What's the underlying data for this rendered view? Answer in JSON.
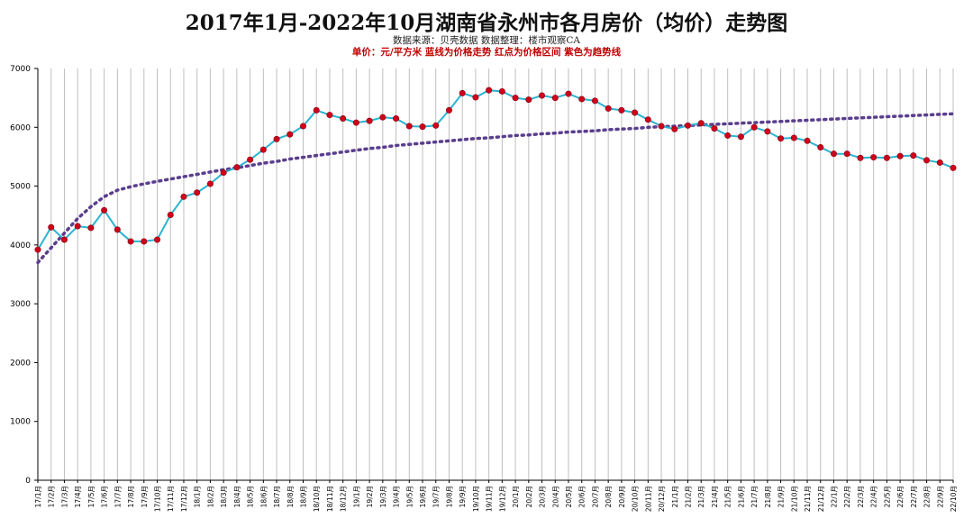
{
  "title": "2017年1月-2022年10月湖南省永州市各月房价（均价）走势图",
  "subtitle": "数据来源：贝壳数据  数据整理：楼市观察CA",
  "note": "单价：元/平方米  蓝线为价格走势    红点为价格区间      紫色为趋势线",
  "colors": {
    "line": "#2bb4d0",
    "point": "#d0021b",
    "trend": "#5a3e8e",
    "grid": "#bfbfbf"
  },
  "chart_data": {
    "type": "line",
    "title": "2017年1月-2022年10月湖南省永州市各月房价（均价）走势图",
    "ylim": [
      0,
      7000
    ],
    "yticks": [
      0,
      1000,
      2000,
      3000,
      4000,
      5000,
      6000,
      7000
    ],
    "grid": "vertical",
    "categories": [
      "17/1月",
      "17/2月",
      "17/3月",
      "17/4月",
      "17/5月",
      "17/6月",
      "17/7月",
      "17/8月",
      "17/9月",
      "17/10月",
      "17/11月",
      "17/12月",
      "18/1月",
      "18/2月",
      "18/3月",
      "18/4月",
      "18/5月",
      "18/6月",
      "18/7月",
      "18/8月",
      "18/9月",
      "18/10月",
      "18/11月",
      "18/12月",
      "19/1月",
      "19/2月",
      "19/3月",
      "19/4月",
      "19/5月",
      "19/6月",
      "19/7月",
      "19/8月",
      "19/9月",
      "19/10月",
      "19/11月",
      "19/12月",
      "20/1月",
      "20/2月",
      "20/3月",
      "20/4月",
      "20/5月",
      "20/6月",
      "20/7月",
      "20/8月",
      "20/9月",
      "20/10月",
      "20/11月",
      "20/12月",
      "21/1月",
      "21/2月",
      "21/3月",
      "21/4月",
      "21/5月",
      "21/6月",
      "21/7月",
      "21/8月",
      "21/9月",
      "21/10月",
      "21/11月",
      "21/12月",
      "22/1月",
      "22/2月",
      "22/3月",
      "22/4月",
      "22/5月",
      "22/6月",
      "22/7月",
      "22/8月",
      "22/9月",
      "22/10月"
    ],
    "series": [
      {
        "values": [
          3920,
          4300,
          4090,
          4320,
          4290,
          4590,
          4260,
          4060,
          4060,
          4090,
          4510,
          4820,
          4890,
          5040,
          5230,
          5320,
          5450,
          5620,
          5800,
          5880,
          6020,
          6290,
          6210,
          6150,
          6080,
          6110,
          6170,
          6150,
          6020,
          6010,
          6030,
          6290,
          6580,
          6510,
          6630,
          6610,
          6500,
          6470,
          6540,
          6500,
          6570,
          6480,
          6450,
          6320,
          6290,
          6250,
          6130,
          6020,
          5970,
          6030,
          6070,
          5980,
          5860,
          5840,
          6000,
          5930,
          5810,
          5820,
          5770,
          5660,
          5550,
          5550,
          5480,
          5490,
          5480,
          5510,
          5520,
          5440,
          5400,
          5310
        ]
      },
      {
        "values": [
          3700,
          3950,
          4200,
          4450,
          4650,
          4820,
          4930,
          4990,
          5040,
          5080,
          5120,
          5160,
          5200,
          5240,
          5280,
          5310,
          5350,
          5390,
          5420,
          5460,
          5490,
          5520,
          5550,
          5580,
          5610,
          5640,
          5660,
          5690,
          5710,
          5730,
          5750,
          5770,
          5790,
          5810,
          5820,
          5840,
          5860,
          5870,
          5890,
          5900,
          5920,
          5930,
          5940,
          5960,
          5970,
          5980,
          6000,
          6010,
          6020,
          6030,
          6040,
          6050,
          6060,
          6070,
          6080,
          6090,
          6100,
          6110,
          6120,
          6130,
          6140,
          6150,
          6160,
          6170,
          6180,
          6190,
          6200,
          6210,
          6220,
          6230
        ]
      }
    ]
  }
}
